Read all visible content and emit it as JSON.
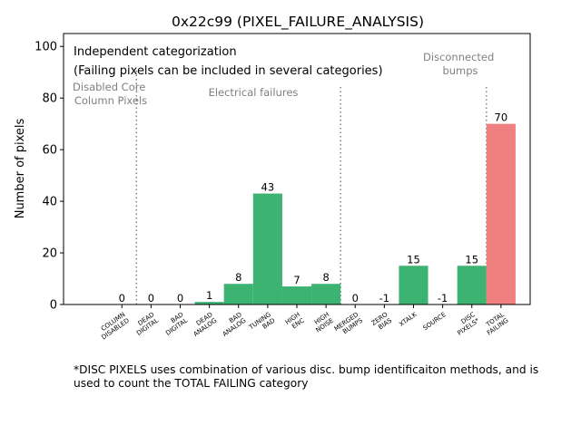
{
  "chart_data": {
    "type": "bar",
    "title": "0x22c99 (PIXEL_FAILURE_ANALYSIS)",
    "xlabel": "",
    "ylabel": "Number of pixels",
    "ylim": [
      0,
      105
    ],
    "yticks": [
      0,
      20,
      40,
      60,
      80,
      100
    ],
    "categories": [
      [
        "COLUMN",
        "DISABLED"
      ],
      [
        "DEAD",
        "DIGITAL"
      ],
      [
        "BAD",
        "DIGITAL"
      ],
      [
        "DEAD",
        "ANALOG"
      ],
      [
        "BAD",
        "ANALOG"
      ],
      [
        "TUNING",
        "BAD"
      ],
      [
        "HIGH",
        "ENC"
      ],
      [
        "HIGH",
        "NOISE"
      ],
      [
        "MERGED",
        "BUMPS"
      ],
      [
        "ZERO",
        "BIAS"
      ],
      [
        "XTALK"
      ],
      [
        "SOURCE"
      ],
      [
        "DISC",
        "PIXELS*"
      ],
      [
        "TOTAL",
        "FAILING"
      ]
    ],
    "values": [
      0,
      0,
      0,
      1,
      8,
      43,
      7,
      8,
      0,
      -1,
      15,
      -1,
      15,
      70
    ],
    "value_labels": [
      "0",
      "0",
      "0",
      "1",
      "8",
      "43",
      "7",
      "8",
      "0",
      "-1",
      "15",
      "-1",
      "15",
      "70"
    ],
    "bar_colors": [
      "#3cb371",
      "#3cb371",
      "#3cb371",
      "#3cb371",
      "#3cb371",
      "#3cb371",
      "#3cb371",
      "#3cb371",
      "#3cb371",
      "#3cb371",
      "#3cb371",
      "#3cb371",
      "#3cb371",
      "#f08080"
    ],
    "annotations": {
      "note_line1": "Independent categorization",
      "note_line2": "(Failing pixels can be included in several categories)",
      "region_disabled": [
        "Disabled Core",
        "Column Pixels"
      ],
      "region_electrical": "Electrical failures",
      "region_disconnected": [
        "Disconnected",
        "bumps"
      ]
    },
    "footnote": "*DISC PIXELS uses combination of various disc. bump identificaiton methods, and is used to count the TOTAL FAILING category"
  }
}
